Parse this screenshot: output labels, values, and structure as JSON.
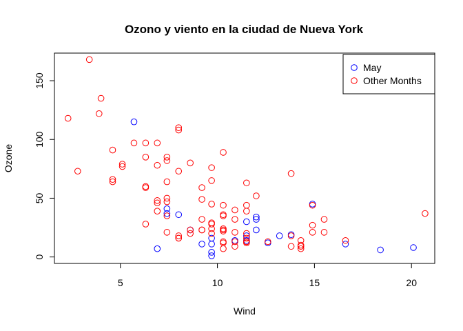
{
  "chart_data": {
    "type": "scatter",
    "title": "Ozono y viento en la ciudad de Nueva York",
    "xlabel": "Wind",
    "ylabel": "Ozone",
    "xlim": [
      1.6,
      21.2
    ],
    "ylim": [
      -5.5,
      173.5
    ],
    "x_ticks": [
      5,
      10,
      15,
      20
    ],
    "y_ticks": [
      0,
      50,
      100,
      150
    ],
    "grid": false,
    "legend_position": "top-right",
    "series": [
      {
        "name": "May",
        "color": "#0000ff",
        "marker": "open-circle",
        "x": [
          7.4,
          8.0,
          12.6,
          11.5,
          8.6,
          13.8,
          20.1,
          9.7,
          9.2,
          10.9,
          13.2,
          11.5,
          12.0,
          18.4,
          11.5,
          9.7,
          9.7,
          16.6,
          9.7,
          12.0,
          12.0,
          14.9,
          5.7,
          7.4,
          6.9
        ],
        "y": [
          41,
          36,
          12,
          18,
          23,
          19,
          8,
          16,
          11,
          14,
          18,
          14,
          34,
          6,
          30,
          11,
          1,
          11,
          4,
          32,
          23,
          45,
          115,
          37,
          7
        ]
      },
      {
        "name": "Other Months",
        "color": "#ff0000",
        "marker": "open-circle",
        "x": [
          3.4,
          4.0,
          3.9,
          2.3,
          5.7,
          6.3,
          6.9,
          4.6,
          8.0,
          8.0,
          10.3,
          9.7,
          7.4,
          7.4,
          8.6,
          6.3,
          5.1,
          5.1,
          2.8,
          4.6,
          4.6,
          6.3,
          6.3,
          6.9,
          9.2,
          9.7,
          11.5,
          13.8,
          7.4,
          7.4,
          6.9,
          6.9,
          12.0,
          9.2,
          10.3,
          10.9,
          8.0,
          6.9,
          7.4,
          6.3,
          8.6,
          9.7,
          10.3,
          11.5,
          11.5,
          12.6,
          14.3,
          14.9,
          15.5,
          16.6,
          20.7,
          10.3,
          10.3,
          10.9,
          11.5,
          13.8,
          14.3,
          14.9,
          15.5,
          8.0,
          9.2,
          9.7,
          10.3,
          10.9,
          11.5,
          7.4,
          8.0,
          8.6,
          9.7,
          10.3,
          10.3,
          10.9,
          11.5,
          11.5,
          13.8,
          14.3,
          14.3,
          14.9,
          9.2,
          9.7,
          10.3,
          10.9,
          11.5,
          8.0,
          9.2,
          7.4,
          10.3,
          9.7
        ],
        "y": [
          168,
          135,
          122,
          118,
          97,
          97,
          97,
          91,
          110,
          108,
          89,
          76,
          85,
          82,
          80,
          85,
          79,
          77,
          73,
          66,
          64,
          60,
          59,
          78,
          59,
          65,
          63,
          71,
          64,
          50,
          48,
          46,
          52,
          49,
          44,
          40,
          73,
          39,
          47,
          28,
          20,
          45,
          36,
          44,
          39,
          13,
          14,
          44,
          32,
          14,
          37,
          35,
          22,
          32,
          12,
          18,
          9,
          21,
          21,
          16,
          23,
          20,
          24,
          21,
          13,
          21,
          18,
          23,
          28,
          13,
          23,
          13,
          13,
          16,
          9,
          7,
          10,
          27,
          32,
          29,
          12,
          9,
          20,
          16,
          23,
          35,
          7,
          24
        ]
      }
    ]
  }
}
